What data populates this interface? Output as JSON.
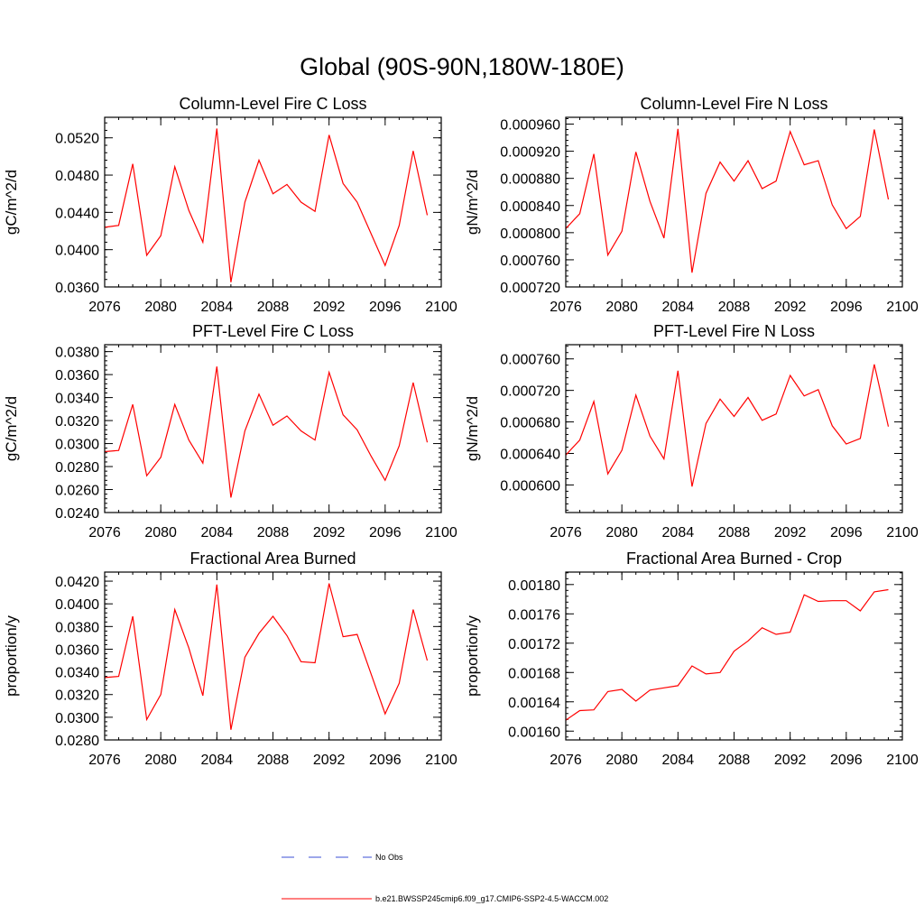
{
  "figure_title": "Global (90S-90N,180W-180E)",
  "legend": {
    "items": [
      {
        "label": "No Obs",
        "color": "#3b4fd6",
        "dash": "dashed"
      },
      {
        "label": "b.e21.BWSSP245cmip6.f09_g17.CMIP6-SSP2-4.5-WACCM.002",
        "color": "#ff0000",
        "dash": "solid"
      }
    ]
  },
  "chart_data": [
    {
      "type": "line",
      "title": "Column-Level Fire C Loss",
      "xlabel": "",
      "ylabel": "gC/m^2/d",
      "xlim": [
        2076,
        2100
      ],
      "ylim": [
        0.036,
        0.0542
      ],
      "x_ticks": [
        2076,
        2080,
        2084,
        2088,
        2092,
        2096,
        2100
      ],
      "x_tick_labels": [
        "2076",
        "2080",
        "2084",
        "2088",
        "2092",
        "2096",
        "2100"
      ],
      "y_ticks": [
        0.036,
        0.04,
        0.044,
        0.048,
        0.052
      ],
      "y_tick_labels": [
        "0.0360",
        "0.0400",
        "0.0440",
        "0.0480",
        "0.0520"
      ],
      "series": [
        {
          "color": "#ff0000",
          "x": [
            2076,
            2077,
            2078,
            2079,
            2080,
            2081,
            2082,
            2083,
            2084,
            2085,
            2086,
            2087,
            2088,
            2089,
            2090,
            2091,
            2092,
            2093,
            2094,
            2095,
            2096,
            2097,
            2098,
            2099
          ],
          "values": [
            0.0424,
            0.0426,
            0.0492,
            0.0394,
            0.0415,
            0.0489,
            0.0442,
            0.0408,
            0.053,
            0.0365,
            0.0451,
            0.0496,
            0.046,
            0.047,
            0.0451,
            0.0441,
            0.0523,
            0.0471,
            0.0451,
            0.0417,
            0.0383,
            0.0426,
            0.0506,
            0.0437
          ]
        }
      ]
    },
    {
      "type": "line",
      "title": "Column-Level Fire N Loss",
      "xlabel": "",
      "ylabel": "gN/m^2/d",
      "xlim": [
        2076,
        2100
      ],
      "ylim": [
        0.00072,
        0.00097
      ],
      "x_ticks": [
        2076,
        2080,
        2084,
        2088,
        2092,
        2096,
        2100
      ],
      "x_tick_labels": [
        "2076",
        "2080",
        "2084",
        "2088",
        "2092",
        "2096",
        "2100"
      ],
      "y_ticks": [
        0.00072,
        0.00076,
        0.0008,
        0.00084,
        0.00088,
        0.00092,
        0.00096
      ],
      "y_tick_labels": [
        "0.000720",
        "0.000760",
        "0.000800",
        "0.000840",
        "0.000880",
        "0.000920",
        "0.000960"
      ],
      "series": [
        {
          "color": "#ff0000",
          "x": [
            2076,
            2077,
            2078,
            2079,
            2080,
            2081,
            2082,
            2083,
            2084,
            2085,
            2086,
            2087,
            2088,
            2089,
            2090,
            2091,
            2092,
            2093,
            2094,
            2095,
            2096,
            2097,
            2098,
            2099
          ],
          "values": [
            0.000806,
            0.000828,
            0.000916,
            0.000767,
            0.000802,
            0.000919,
            0.000846,
            0.000792,
            0.000953,
            0.000741,
            0.000858,
            0.000904,
            0.000876,
            0.000906,
            0.000865,
            0.000876,
            0.000949,
            0.0009,
            0.000906,
            0.000841,
            0.000806,
            0.000824,
            0.000952,
            0.000849
          ]
        }
      ]
    },
    {
      "type": "line",
      "title": "PFT-Level Fire C Loss",
      "xlabel": "",
      "ylabel": "gC/m^2/d",
      "xlim": [
        2076,
        2100
      ],
      "ylim": [
        0.024,
        0.0386
      ],
      "x_ticks": [
        2076,
        2080,
        2084,
        2088,
        2092,
        2096,
        2100
      ],
      "x_tick_labels": [
        "2076",
        "2080",
        "2084",
        "2088",
        "2092",
        "2096",
        "2100"
      ],
      "y_ticks": [
        0.024,
        0.026,
        0.028,
        0.03,
        0.032,
        0.034,
        0.036,
        0.038
      ],
      "y_tick_labels": [
        "0.0240",
        "0.0260",
        "0.0280",
        "0.0300",
        "0.0320",
        "0.0340",
        "0.0360",
        "0.0380"
      ],
      "series": [
        {
          "color": "#ff0000",
          "x": [
            2076,
            2077,
            2078,
            2079,
            2080,
            2081,
            2082,
            2083,
            2084,
            2085,
            2086,
            2087,
            2088,
            2089,
            2090,
            2091,
            2092,
            2093,
            2094,
            2095,
            2096,
            2097,
            2098,
            2099
          ],
          "values": [
            0.0293,
            0.0294,
            0.0334,
            0.0272,
            0.0288,
            0.0334,
            0.0303,
            0.0283,
            0.0367,
            0.0253,
            0.0311,
            0.0343,
            0.0316,
            0.0324,
            0.0311,
            0.0303,
            0.0362,
            0.0325,
            0.0312,
            0.0289,
            0.0268,
            0.0298,
            0.0353,
            0.0301
          ]
        }
      ]
    },
    {
      "type": "line",
      "title": "PFT-Level Fire N Loss",
      "xlabel": "",
      "ylabel": "gN/m^2/d",
      "xlim": [
        2076,
        2100
      ],
      "ylim": [
        0.000565,
        0.000778
      ],
      "x_ticks": [
        2076,
        2080,
        2084,
        2088,
        2092,
        2096,
        2100
      ],
      "x_tick_labels": [
        "2076",
        "2080",
        "2084",
        "2088",
        "2092",
        "2096",
        "2100"
      ],
      "y_ticks": [
        0.0006,
        0.00064,
        0.00068,
        0.00072,
        0.00076
      ],
      "y_tick_labels": [
        "0.000600",
        "0.000640",
        "0.000680",
        "0.000720",
        "0.000760"
      ],
      "series": [
        {
          "color": "#ff0000",
          "x": [
            2076,
            2077,
            2078,
            2079,
            2080,
            2081,
            2082,
            2083,
            2084,
            2085,
            2086,
            2087,
            2088,
            2089,
            2090,
            2091,
            2092,
            2093,
            2094,
            2095,
            2096,
            2097,
            2098,
            2099
          ],
          "values": [
            0.000638,
            0.000657,
            0.000706,
            0.000614,
            0.000644,
            0.000714,
            0.000662,
            0.000633,
            0.000745,
            0.000598,
            0.000678,
            0.000709,
            0.000687,
            0.000711,
            0.000682,
            0.00069,
            0.000739,
            0.000713,
            0.000721,
            0.000675,
            0.000652,
            0.000659,
            0.000753,
            0.000674
          ]
        }
      ]
    },
    {
      "type": "line",
      "title": "Fractional Area Burned",
      "xlabel": "",
      "ylabel": "proportion/y",
      "xlim": [
        2076,
        2100
      ],
      "ylim": [
        0.028,
        0.0428
      ],
      "x_ticks": [
        2076,
        2080,
        2084,
        2088,
        2092,
        2096,
        2100
      ],
      "x_tick_labels": [
        "2076",
        "2080",
        "2084",
        "2088",
        "2092",
        "2096",
        "2100"
      ],
      "y_ticks": [
        0.028,
        0.03,
        0.032,
        0.034,
        0.036,
        0.038,
        0.04,
        0.042
      ],
      "y_tick_labels": [
        "0.0280",
        "0.0300",
        "0.0320",
        "0.0340",
        "0.0360",
        "0.0380",
        "0.0400",
        "0.0420"
      ],
      "series": [
        {
          "color": "#ff0000",
          "x": [
            2076,
            2077,
            2078,
            2079,
            2080,
            2081,
            2082,
            2083,
            2084,
            2085,
            2086,
            2087,
            2088,
            2089,
            2090,
            2091,
            2092,
            2093,
            2094,
            2095,
            2096,
            2097,
            2098,
            2099
          ],
          "values": [
            0.0335,
            0.0336,
            0.0389,
            0.0298,
            0.032,
            0.0395,
            0.0361,
            0.0319,
            0.0417,
            0.0289,
            0.0353,
            0.0374,
            0.0389,
            0.0372,
            0.0349,
            0.0348,
            0.0418,
            0.0371,
            0.0373,
            0.0338,
            0.0303,
            0.033,
            0.0395,
            0.035
          ]
        }
      ]
    },
    {
      "type": "line",
      "title": "Fractional Area Burned - Crop",
      "xlabel": "",
      "ylabel": "proportion/y",
      "xlim": [
        2076,
        2100
      ],
      "ylim": [
        0.001588,
        0.001817
      ],
      "x_ticks": [
        2076,
        2080,
        2084,
        2088,
        2092,
        2096,
        2100
      ],
      "x_tick_labels": [
        "2076",
        "2080",
        "2084",
        "2088",
        "2092",
        "2096",
        "2100"
      ],
      "y_ticks": [
        0.0016,
        0.00164,
        0.00168,
        0.00172,
        0.00176,
        0.0018
      ],
      "y_tick_labels": [
        "0.00160",
        "0.00164",
        "0.00168",
        "0.00172",
        "0.00176",
        "0.00180"
      ],
      "series": [
        {
          "color": "#ff0000",
          "x": [
            2076,
            2077,
            2078,
            2079,
            2080,
            2081,
            2082,
            2083,
            2084,
            2085,
            2086,
            2087,
            2088,
            2089,
            2090,
            2091,
            2092,
            2093,
            2094,
            2095,
            2096,
            2097,
            2098,
            2099
          ],
          "values": [
            0.001615,
            0.001628,
            0.001629,
            0.001654,
            0.001657,
            0.001641,
            0.001656,
            0.001659,
            0.001662,
            0.001689,
            0.001678,
            0.00168,
            0.001709,
            0.001723,
            0.001741,
            0.001732,
            0.001735,
            0.001786,
            0.001777,
            0.001778,
            0.001778,
            0.001764,
            0.00179,
            0.001793
          ]
        }
      ]
    }
  ]
}
